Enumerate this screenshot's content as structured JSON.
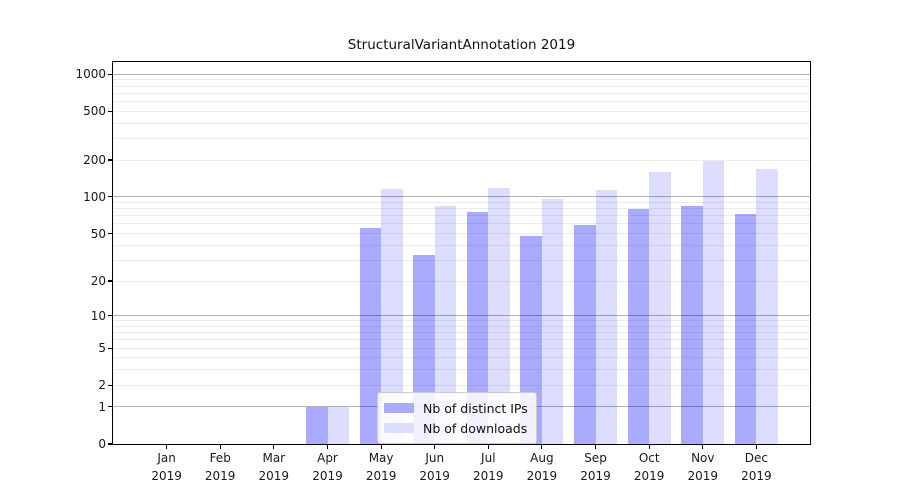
{
  "figure": {
    "title": "StructuralVariantAnnotation 2019"
  },
  "chart_data": {
    "type": "bar",
    "title": "StructuralVariantAnnotation 2019",
    "xlabel": "",
    "ylabel": "",
    "year_label": "2019",
    "categories": [
      "Jan",
      "Feb",
      "Mar",
      "Apr",
      "May",
      "Jun",
      "Jul",
      "Aug",
      "Sep",
      "Oct",
      "Nov",
      "Dec"
    ],
    "series": [
      {
        "name": "Nb of distinct IPs",
        "color": "#aaaaff",
        "values": [
          0,
          0,
          0,
          1,
          56,
          33,
          75,
          48,
          59,
          80,
          84,
          73
        ]
      },
      {
        "name": "Nb of downloads",
        "color": "#ddddff",
        "values": [
          0,
          0,
          0,
          1,
          116,
          85,
          118,
          96,
          114,
          160,
          195,
          170
        ]
      }
    ],
    "y_ticks": [
      0,
      1,
      2,
      5,
      10,
      20,
      50,
      100,
      200,
      500,
      1000
    ],
    "scale": "log1p",
    "ylim": [
      0,
      1253
    ],
    "grid": "horizontal",
    "legend_position": "lower-center",
    "colors": {
      "axis": "#000000",
      "text": "#1a1a1a",
      "legend_border": "#cccccc"
    }
  }
}
